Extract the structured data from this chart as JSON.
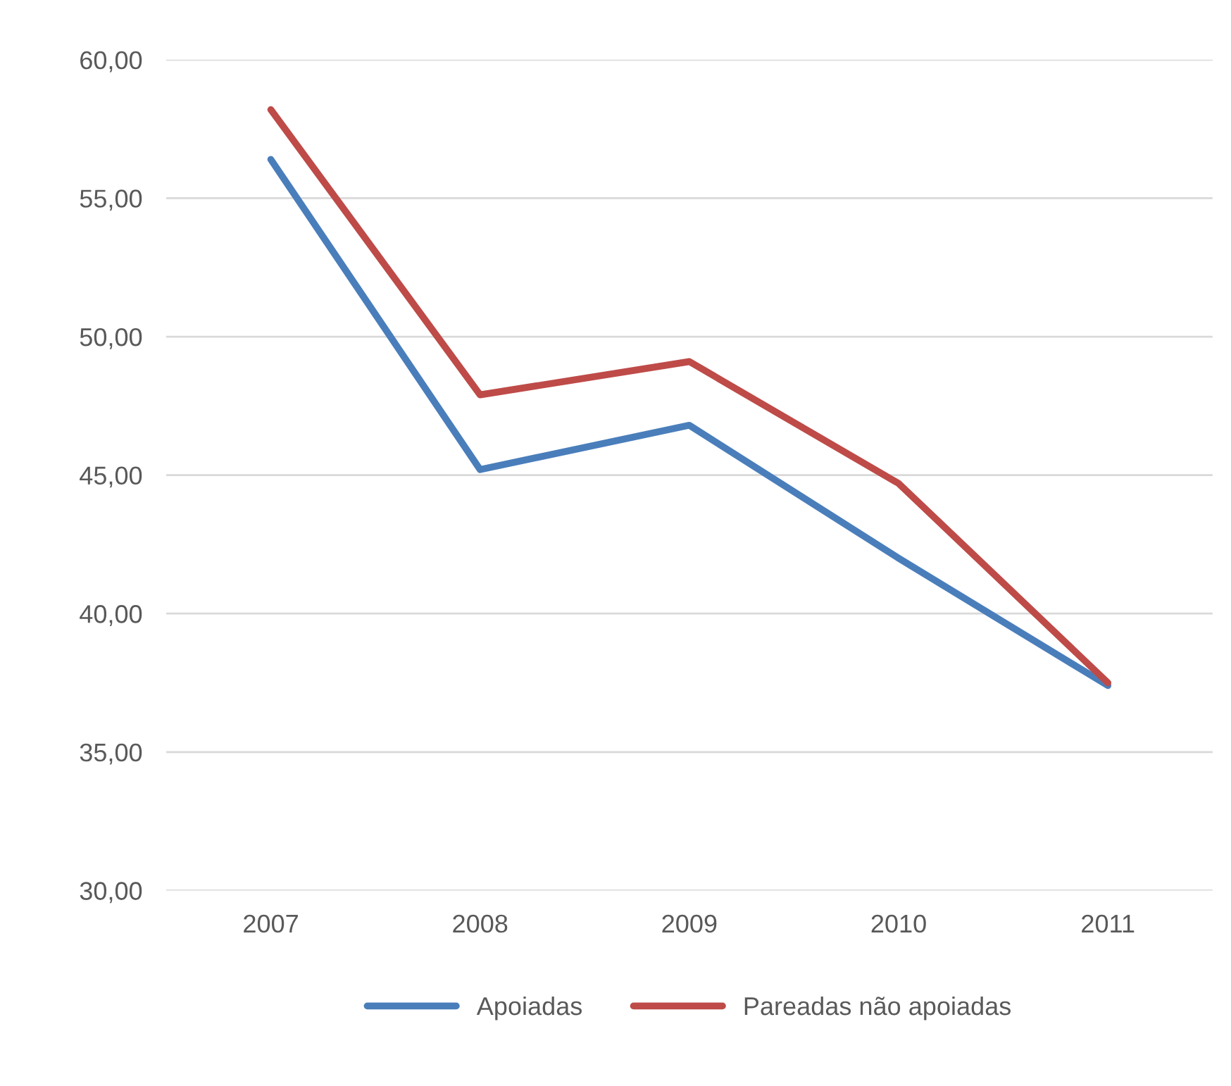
{
  "chart_data": {
    "type": "line",
    "categories": [
      "2007",
      "2008",
      "2009",
      "2010",
      "2011"
    ],
    "series": [
      {
        "name": "Apoiadas",
        "color": "#4a7ebb",
        "values": [
          56.4,
          45.2,
          46.8,
          42.0,
          37.4
        ]
      },
      {
        "name": "Pareadas não apoiadas",
        "color": "#be4b48",
        "values": [
          58.2,
          47.9,
          49.1,
          44.7,
          37.5
        ]
      }
    ],
    "ylim": [
      30,
      60
    ],
    "yticks": [
      {
        "value": 30,
        "label": "30,00"
      },
      {
        "value": 35,
        "label": "35,00"
      },
      {
        "value": 40,
        "label": "40,00"
      },
      {
        "value": 45,
        "label": "45,00"
      },
      {
        "value": 50,
        "label": "50,00"
      },
      {
        "value": 55,
        "label": "55,00"
      },
      {
        "value": 60,
        "label": "60,00"
      }
    ],
    "grid": "y",
    "legend": "bottom",
    "marker": "none",
    "line_style": "solid"
  }
}
